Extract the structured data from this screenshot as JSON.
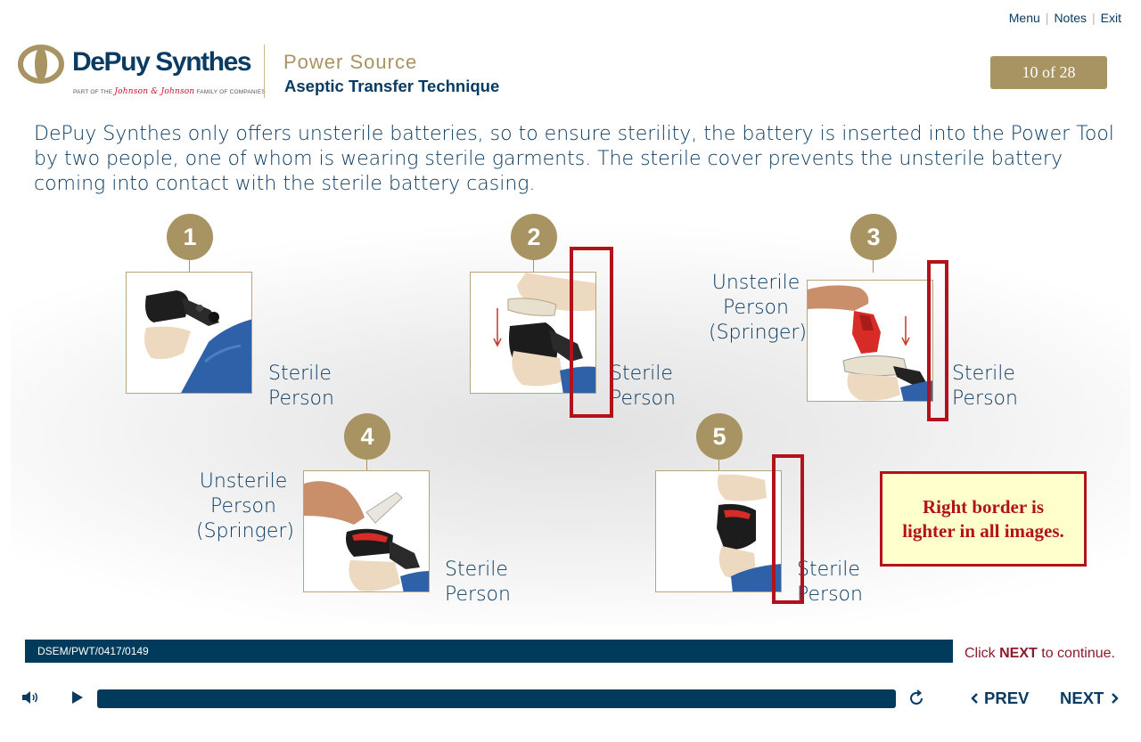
{
  "top_nav": {
    "menu": "Menu",
    "notes": "Notes",
    "exit": "Exit"
  },
  "brand": {
    "name": "DePuy Synthes",
    "tagline_pre": "PART OF THE",
    "tagline_jj": "Johnson & Johnson",
    "tagline_post": "FAMILY OF COMPANIES"
  },
  "course": {
    "title": "Power Source",
    "subtitle": "Aseptic Transfer Technique"
  },
  "page_counter": "10 of 28",
  "intro_text": "DePuy Synthes only offers unsterile batteries, so to ensure sterility, the battery is inserted into the Power Tool by two people, one of whom is wearing sterile garments. The sterile cover prevents the unsterile battery coming into contact with the sterile battery casing.",
  "steps": [
    {
      "number": "1",
      "sterile_label": [
        "Sterile",
        "Person"
      ]
    },
    {
      "number": "2",
      "sterile_label": [
        "Sterile",
        "Person"
      ]
    },
    {
      "number": "3",
      "unsterile_label": [
        "Unsterile",
        "Person",
        "(Springer)"
      ],
      "sterile_label": [
        "Sterile",
        "Person"
      ]
    },
    {
      "number": "4",
      "unsterile_label": [
        "Unsterile",
        "Person",
        "(Springer)"
      ],
      "sterile_label": [
        "Sterile",
        "Person"
      ]
    },
    {
      "number": "5",
      "sterile_label": [
        "Sterile",
        "Person"
      ]
    }
  ],
  "callout": {
    "line1": "Right border is",
    "line2": "lighter in all images."
  },
  "footer": {
    "code": "DSEM/PWT/0417/0149",
    "continue_pre": "Click",
    "continue_next": "NEXT",
    "continue_post": "to continue."
  },
  "player": {
    "prev_label": "PREV",
    "next_label": "NEXT",
    "progress": 0.98
  },
  "colors": {
    "navy": "#003b5c",
    "gold": "#a89462",
    "annotation_red": "#b3121b",
    "callout_bg": "#ffffcc"
  },
  "icons": [
    "volume-icon",
    "play-icon",
    "replay-icon",
    "chevron-left-icon",
    "chevron-right-icon"
  ]
}
